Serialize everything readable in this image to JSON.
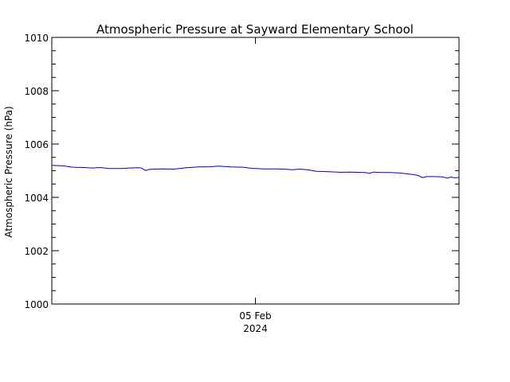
{
  "chart_data": {
    "type": "line",
    "title": "Atmospheric Pressure at Sayward Elementary School",
    "ylabel": "Atmospheric Pressure (hPa)",
    "xlabel": "",
    "x_tick_labels": [
      {
        "x": 0.5,
        "line1": "05 Feb",
        "line2": "2024"
      }
    ],
    "xlim": [
      0,
      1
    ],
    "ylim": [
      1000,
      1010
    ],
    "y_ticks": [
      1000,
      1002,
      1004,
      1006,
      1008,
      1010
    ],
    "grid": false,
    "colors": {
      "series": "#0000cc",
      "axes": "#000000"
    },
    "series": [
      {
        "values": [
          [
            0.0,
            1005.2
          ],
          [
            0.03,
            1005.18
          ],
          [
            0.05,
            1005.13
          ],
          [
            0.08,
            1005.12
          ],
          [
            0.1,
            1005.1
          ],
          [
            0.12,
            1005.12
          ],
          [
            0.14,
            1005.08
          ],
          [
            0.17,
            1005.08
          ],
          [
            0.19,
            1005.1
          ],
          [
            0.21,
            1005.11
          ],
          [
            0.22,
            1005.1
          ],
          [
            0.23,
            1005.01
          ],
          [
            0.24,
            1005.05
          ],
          [
            0.27,
            1005.07
          ],
          [
            0.3,
            1005.06
          ],
          [
            0.33,
            1005.11
          ],
          [
            0.36,
            1005.14
          ],
          [
            0.39,
            1005.15
          ],
          [
            0.41,
            1005.17
          ],
          [
            0.44,
            1005.14
          ],
          [
            0.47,
            1005.13
          ],
          [
            0.49,
            1005.09
          ],
          [
            0.52,
            1005.07
          ],
          [
            0.55,
            1005.07
          ],
          [
            0.57,
            1005.06
          ],
          [
            0.59,
            1005.04
          ],
          [
            0.61,
            1005.06
          ],
          [
            0.63,
            1005.03
          ],
          [
            0.65,
            1004.98
          ],
          [
            0.68,
            1004.96
          ],
          [
            0.71,
            1004.94
          ],
          [
            0.73,
            1004.95
          ],
          [
            0.75,
            1004.94
          ],
          [
            0.77,
            1004.93
          ],
          [
            0.78,
            1004.9
          ],
          [
            0.79,
            1004.95
          ],
          [
            0.81,
            1004.93
          ],
          [
            0.83,
            1004.93
          ],
          [
            0.85,
            1004.92
          ],
          [
            0.87,
            1004.89
          ],
          [
            0.89,
            1004.85
          ],
          [
            0.9,
            1004.82
          ],
          [
            0.91,
            1004.74
          ],
          [
            0.92,
            1004.78
          ],
          [
            0.94,
            1004.78
          ],
          [
            0.96,
            1004.77
          ],
          [
            0.97,
            1004.72
          ],
          [
            0.98,
            1004.76
          ],
          [
            0.99,
            1004.73
          ],
          [
            1.0,
            1004.75
          ]
        ]
      }
    ]
  }
}
